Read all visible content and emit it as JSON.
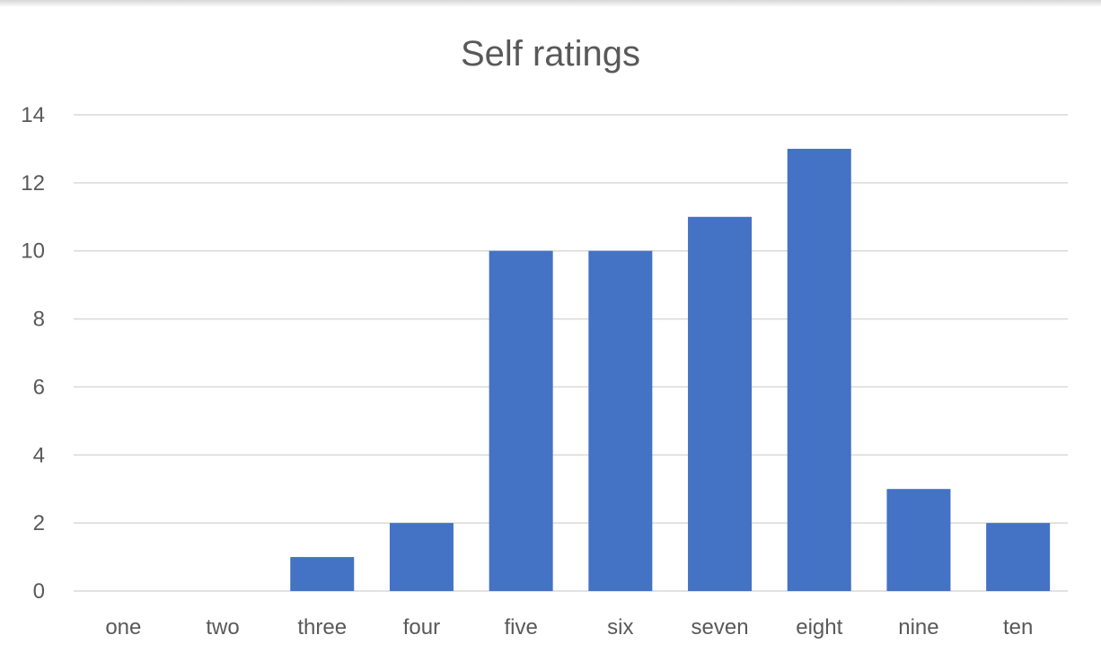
{
  "chart_data": {
    "type": "bar",
    "title": "Self ratings",
    "categories": [
      "one",
      "two",
      "three",
      "four",
      "five",
      "six",
      "seven",
      "eight",
      "nine",
      "ten"
    ],
    "values": [
      0,
      0,
      1,
      2,
      10,
      10,
      11,
      13,
      3,
      2
    ],
    "ylim": [
      0,
      14
    ],
    "yticks": [
      0,
      2,
      4,
      6,
      8,
      10,
      12,
      14
    ],
    "xlabel": "",
    "ylabel": "",
    "grid": true,
    "bar_color": "#4472c4"
  }
}
